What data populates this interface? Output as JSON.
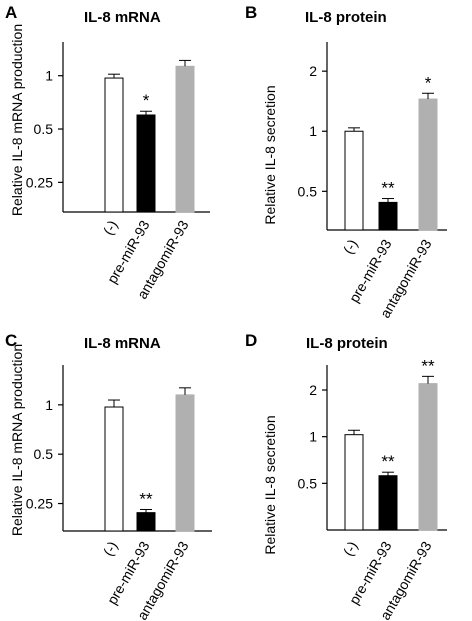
{
  "chart_data": [
    {
      "type": "bar",
      "panel": "A",
      "title": "IL-8 mRNA",
      "ylabel": "Relative IL-8 mRNA production",
      "scale": "log2",
      "ylim": [
        0.17,
        1.55
      ],
      "yticks": [
        {
          "v": 1,
          "t": "1"
        },
        {
          "v": 0.5,
          "t": "0.5"
        },
        {
          "v": 0.25,
          "t": "0.25"
        }
      ],
      "categories": [
        "(-)",
        "pre-miR-93",
        "antagomiR-93"
      ],
      "values": [
        0.97,
        0.6,
        1.13
      ],
      "errors": [
        0.05,
        0.03,
        0.09
      ],
      "colors": [
        "#ffffff",
        "#000000",
        "#b0b0b0"
      ],
      "significance": [
        "",
        "*",
        ""
      ]
    },
    {
      "type": "bar",
      "panel": "B",
      "title": "IL-8 protein",
      "ylabel": "Relative IL-8 secretion",
      "scale": "log2",
      "ylim": [
        0.32,
        2.8
      ],
      "yticks": [
        {
          "v": 2,
          "t": "2"
        },
        {
          "v": 1,
          "t": "1"
        },
        {
          "v": 0.5,
          "t": "0.5"
        }
      ],
      "categories": [
        "(-)",
        "pre-miR-93",
        "antagomiR-93"
      ],
      "values": [
        1.0,
        0.44,
        1.45
      ],
      "errors": [
        0.04,
        0.02,
        0.1
      ],
      "colors": [
        "#ffffff",
        "#000000",
        "#b0b0b0"
      ],
      "significance": [
        "",
        "**",
        "*"
      ]
    },
    {
      "type": "bar",
      "panel": "C",
      "title": "IL-8 mRNA",
      "ylabel": "Relative IL-8 mRNA production",
      "scale": "log2",
      "ylim": [
        0.17,
        1.75
      ],
      "yticks": [
        {
          "v": 1,
          "t": "1"
        },
        {
          "v": 0.5,
          "t": "0.5"
        },
        {
          "v": 0.25,
          "t": "0.25"
        }
      ],
      "categories": [
        "(-)",
        "pre-miR-93",
        "antagomiR-93"
      ],
      "values": [
        0.97,
        0.22,
        1.15
      ],
      "errors": [
        0.1,
        0.01,
        0.12
      ],
      "colors": [
        "#ffffff",
        "#000000",
        "#b0b0b0"
      ],
      "significance": [
        "",
        "**",
        ""
      ]
    },
    {
      "type": "bar",
      "panel": "D",
      "title": "IL-8 protein",
      "ylabel": "Relative IL-8 secretion",
      "scale": "log2",
      "ylim": [
        0.25,
        2.9
      ],
      "yticks": [
        {
          "v": 2,
          "t": "2"
        },
        {
          "v": 1,
          "t": "1"
        },
        {
          "v": 0.5,
          "t": "0.5"
        }
      ],
      "categories": [
        "(-)",
        "pre-miR-93",
        "antagomiR-93"
      ],
      "values": [
        1.03,
        0.56,
        2.2
      ],
      "errors": [
        0.07,
        0.03,
        0.25
      ],
      "colors": [
        "#ffffff",
        "#000000",
        "#b0b0b0"
      ],
      "significance": [
        "",
        "**",
        "**"
      ]
    }
  ]
}
